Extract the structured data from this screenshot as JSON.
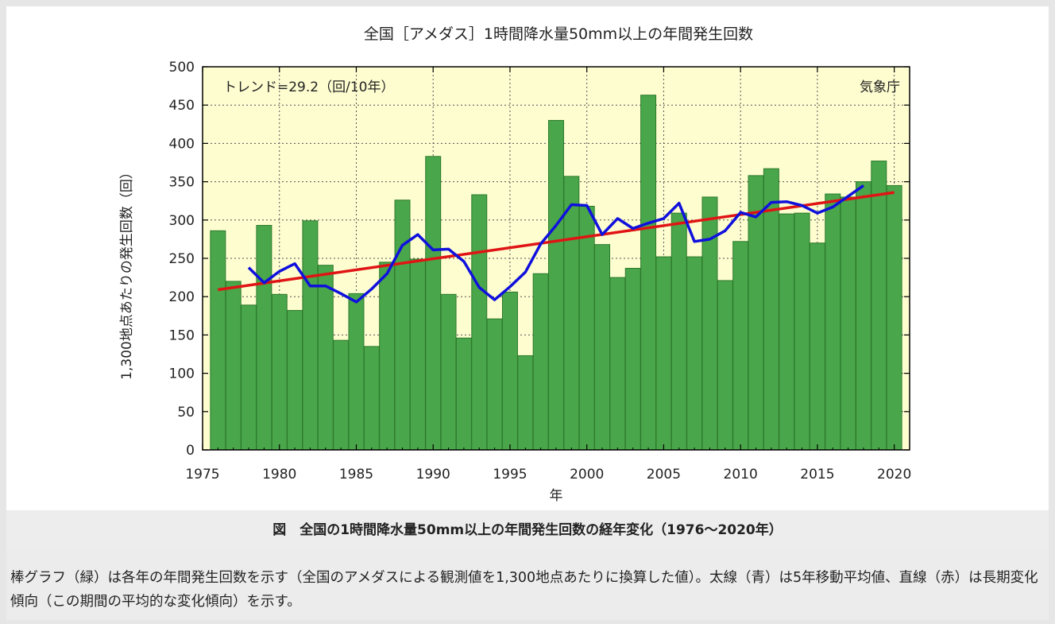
{
  "chart_data": {
    "type": "bar",
    "title": "全国［アメダス］1時間降水量50mm以上の年間発生回数",
    "xlabel": "年",
    "ylabel": "1,300地点あたりの発生回数（回）",
    "trend_label": "トレンド=29.2（回/10年）",
    "source_label": "気象庁",
    "xlim": [
      1975,
      2021
    ],
    "ylim": [
      0,
      500
    ],
    "x_ticks": [
      1975,
      1980,
      1985,
      1990,
      1995,
      2000,
      2005,
      2010,
      2015,
      2020
    ],
    "y_ticks": [
      0,
      50,
      100,
      150,
      200,
      250,
      300,
      350,
      400,
      450,
      500
    ],
    "grid": true,
    "years": [
      1976,
      1977,
      1978,
      1979,
      1980,
      1981,
      1982,
      1983,
      1984,
      1985,
      1986,
      1987,
      1988,
      1989,
      1990,
      1991,
      1992,
      1993,
      1994,
      1995,
      1996,
      1997,
      1998,
      1999,
      2000,
      2001,
      2002,
      2003,
      2004,
      2005,
      2006,
      2007,
      2008,
      2009,
      2010,
      2011,
      2012,
      2013,
      2014,
      2015,
      2016,
      2017,
      2018,
      2019,
      2020
    ],
    "values": [
      286,
      220,
      189,
      293,
      203,
      182,
      299,
      241,
      143,
      204,
      135,
      245,
      326,
      249,
      383,
      203,
      146,
      333,
      171,
      206,
      123,
      230,
      430,
      357,
      318,
      268,
      225,
      237,
      463,
      252,
      309,
      252,
      330,
      221,
      272,
      358,
      367,
      308,
      309,
      270,
      334,
      330,
      350,
      377,
      345
    ],
    "series": [
      {
        "type": "bar",
        "color": "#4aa64a"
      },
      {
        "type": "line",
        "color": "#1010dd",
        "x": [
          1978,
          1979,
          1980,
          1981,
          1982,
          1983,
          1984,
          1985,
          1986,
          1987,
          1988,
          1989,
          1990,
          1991,
          1992,
          1993,
          1994,
          1995,
          1996,
          1997,
          1998,
          1999,
          2000,
          2001,
          2002,
          2003,
          2004,
          2005,
          2006,
          2007,
          2008,
          2009,
          2010,
          2011,
          2012,
          2013,
          2014,
          2015,
          2016,
          2017,
          2018
        ],
        "values": [
          238,
          218,
          233,
          243,
          214,
          214,
          204,
          193,
          210,
          230,
          267,
          281,
          261,
          262,
          246,
          212,
          196,
          213,
          232,
          269,
          293,
          320,
          319,
          281,
          302,
          289,
          296,
          302,
          322,
          272,
          275,
          286,
          310,
          304,
          323,
          324,
          319,
          309,
          317,
          331,
          345
        ]
      },
      {
        "type": "line",
        "color": "#e01414",
        "x": [
          1976,
          2020
        ],
        "values": [
          209,
          336
        ]
      }
    ]
  },
  "caption": {
    "title": "図　全国の1時間降水量50mm以上の年間発生回数の経年変化（1976～2020年）",
    "description": "棒グラフ（緑）は各年の年間発生回数を示す（全国のアメダスによる観測値を1,300地点あたりに換算した値）。太線（青）は5年移動平均値、直線（赤）は長期変化傾向（この期間の平均的な変化傾向）を示す。"
  },
  "colors": {
    "plot_background": "#fdfdd0",
    "bar_fill": "#4aa64a",
    "bar_stroke": "#2c7a2c",
    "moving_average": "#1010dd",
    "trend_line": "#e01414"
  }
}
